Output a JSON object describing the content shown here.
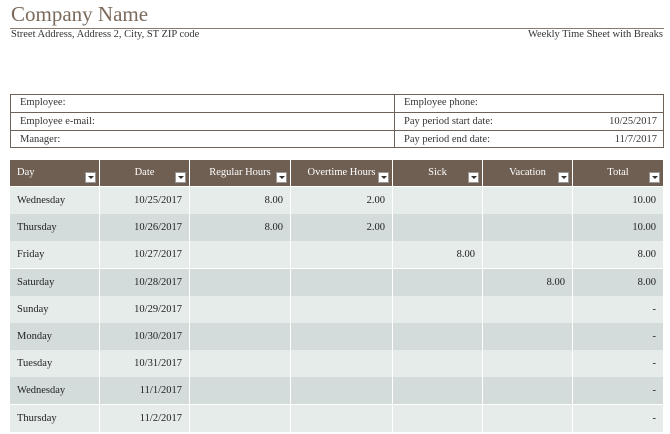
{
  "header": {
    "title": "Company Name",
    "address": "Street Address, Address 2, City, ST ZIP code",
    "subtitle": "Weekly Time Sheet with Breaks"
  },
  "info": {
    "left": [
      {
        "label": "Employee:"
      },
      {
        "label": "Employee e-mail:"
      },
      {
        "label": "Manager:"
      }
    ],
    "right": [
      {
        "label": "Employee phone:"
      },
      {
        "label": "Pay period start date:",
        "value": "10/25/2017"
      },
      {
        "label": "Pay period end date:",
        "value": "11/7/2017"
      }
    ]
  },
  "table": {
    "columns": [
      "Day",
      "Date",
      "Regular Hours",
      "Overtime Hours",
      "Sick",
      "Vacation",
      "Total"
    ],
    "rows": [
      [
        "Wednesday",
        "10/25/2017",
        "8.00",
        "2.00",
        null,
        null,
        "10.00"
      ],
      [
        "Thursday",
        "10/26/2017",
        "8.00",
        "2.00",
        null,
        null,
        "10.00"
      ],
      [
        "Friday",
        "10/27/2017",
        null,
        null,
        "8.00",
        null,
        "8.00"
      ],
      [
        "Saturday",
        "10/28/2017",
        null,
        null,
        null,
        "8.00",
        "8.00"
      ],
      [
        "Sunday",
        "10/29/2017",
        null,
        null,
        null,
        null,
        "-"
      ],
      [
        "Monday",
        "10/30/2017",
        null,
        null,
        null,
        null,
        "-"
      ],
      [
        "Tuesday",
        "10/31/2017",
        null,
        null,
        null,
        null,
        "-"
      ],
      [
        "Wednesday",
        "11/1/2017",
        null,
        null,
        null,
        null,
        "-"
      ],
      [
        "Thursday",
        "11/2/2017",
        null,
        null,
        null,
        null,
        "-"
      ]
    ]
  }
}
